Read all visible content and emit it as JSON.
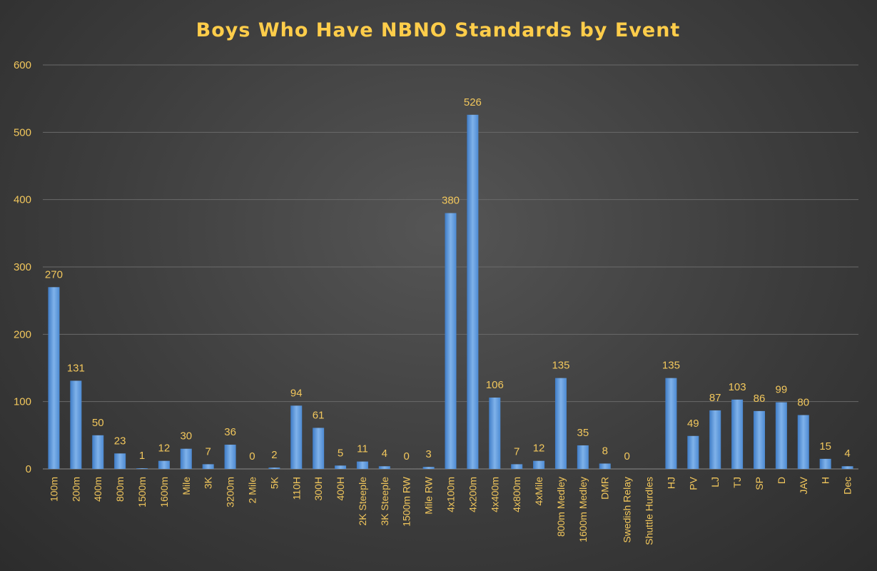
{
  "chart_data": {
    "type": "bar",
    "title": "Boys Who Have NBNO Standards by Event",
    "xlabel": "",
    "ylabel": "",
    "ylim": [
      0,
      600
    ],
    "yticks": [
      0,
      100,
      200,
      300,
      400,
      500,
      600
    ],
    "grid": true,
    "legend": "none",
    "categories": [
      "100m",
      "200m",
      "400m",
      "800m",
      "1500m",
      "1600m",
      "Mile",
      "3K",
      "3200m",
      "2 Mile",
      "5K",
      "110H",
      "300H",
      "400H",
      "2K Steeple",
      "3K Steeple",
      "1500m RW",
      "Mile RW",
      "4x100m",
      "4x200m",
      "4x400m",
      "4x800m",
      "4xMile",
      "800m Medley",
      "1600m Medley",
      "DMR",
      "Swedish Relay",
      "Shuttle Hurdles",
      "HJ",
      "PV",
      "LJ",
      "TJ",
      "SP",
      "D",
      "JAV",
      "H",
      "Dec"
    ],
    "values": [
      270,
      131,
      50,
      23,
      1,
      12,
      30,
      7,
      36,
      0,
      2,
      94,
      61,
      5,
      11,
      4,
      0,
      3,
      380,
      526,
      106,
      7,
      12,
      135,
      35,
      8,
      0,
      null,
      135,
      49,
      87,
      103,
      86,
      99,
      80,
      15,
      4
    ],
    "data_labels": [
      "270",
      "131",
      "50",
      "23",
      "1",
      "12",
      "30",
      "7",
      "36",
      "0",
      "2",
      "94",
      "61",
      "5",
      "11",
      "4",
      "0",
      "3",
      "380",
      "526",
      "106",
      "7",
      "12",
      "135",
      "35",
      "8",
      "0",
      "",
      "135",
      "49",
      "87",
      "103",
      "86",
      "99",
      "80",
      "15",
      "4"
    ],
    "colors": {
      "bar_top": "#7fb2ea",
      "bar_bottom": "#3f7cc6",
      "text": "#f2c75c",
      "title": "#ffcd4a",
      "grid": "#6a6a6a"
    }
  }
}
